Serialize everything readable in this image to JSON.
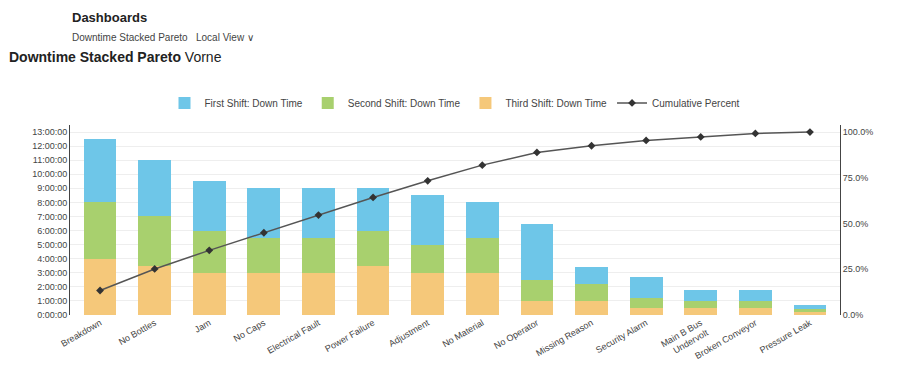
{
  "chart_data": {
    "type": "bar",
    "title": "Downtime Stacked Pareto",
    "subtitle": "Vorne",
    "annotations": [
      "Dashboards",
      "Downtime Stacked Pareto   Local View ∨"
    ],
    "categories": [
      "Breakdown",
      "No Bottles",
      "Jam",
      "No Caps",
      "Electrical Fault",
      "Power Failure",
      "Adjustment",
      "No Material",
      "No Operator",
      "Missing Reason",
      "Security Alarm",
      "Main B Bus\nUndervolt",
      "Broken Conveyor",
      "Pressure Leak"
    ],
    "stacked": true,
    "series": [
      {
        "name": "First Shift: Down Time",
        "type": "bar",
        "color": "#6EC6E8",
        "values": [
          4.5,
          4.0,
          3.5,
          3.5,
          3.5,
          3.0,
          3.5,
          2.5,
          4.0,
          1.2,
          1.5,
          0.8,
          0.8,
          0.25
        ]
      },
      {
        "name": "Second Shift: Down Time",
        "type": "bar",
        "color": "#A8D06E",
        "values": [
          4.0,
          3.5,
          3.0,
          2.5,
          2.5,
          2.5,
          2.0,
          2.5,
          1.5,
          1.2,
          0.7,
          0.5,
          0.5,
          0.25
        ]
      },
      {
        "name": "Third Shift: Down Time",
        "type": "bar",
        "color": "#F5C87A",
        "values": [
          4.0,
          3.5,
          3.0,
          3.0,
          3.0,
          3.5,
          3.0,
          3.0,
          1.0,
          1.0,
          0.5,
          0.5,
          0.5,
          0.2
        ]
      },
      {
        "name": "Cumulative Percent",
        "type": "line",
        "axis": "y2",
        "color": "#555555",
        "marker": "diamond",
        "values": [
          0.133833,
          0.251606,
          0.353319,
          0.449679,
          0.546039,
          0.642398,
          0.733405,
          0.819058,
          0.888651,
          0.925054,
          0.953961,
          0.973233,
          0.992505,
          1.0
        ]
      }
    ],
    "ylim": [
      0,
      13.5
    ],
    "yticks": [
      {
        "value": 0,
        "label": "0:00:00"
      },
      {
        "value": 1,
        "label": "1:00:00"
      },
      {
        "value": 2,
        "label": "2:00:00"
      },
      {
        "value": 3,
        "label": "3:00:00"
      },
      {
        "value": 4,
        "label": "4:00:00"
      },
      {
        "value": 5,
        "label": "5:00:00"
      },
      {
        "value": 6,
        "label": "6:00:00"
      },
      {
        "value": 7,
        "label": "7:00:00"
      },
      {
        "value": 8,
        "label": "8:00:00"
      },
      {
        "value": 9,
        "label": "9:00:00"
      },
      {
        "value": 10,
        "label": "10:00:00"
      },
      {
        "value": 11,
        "label": "11:00:00"
      },
      {
        "value": 12,
        "label": "12:00:00"
      },
      {
        "value": 13,
        "label": "13:00:00"
      }
    ],
    "y2lim": [
      0,
      1.0384615384615385
    ],
    "y2ticks": [
      {
        "value": 0.0,
        "label": "0.0%"
      },
      {
        "value": 0.25,
        "label": "25.0%"
      },
      {
        "value": 0.5,
        "label": "50.0%"
      },
      {
        "value": 0.75,
        "label": "75.0%"
      },
      {
        "value": 1.0,
        "label": "100.0%"
      }
    ],
    "grid": true,
    "legend": "top"
  }
}
